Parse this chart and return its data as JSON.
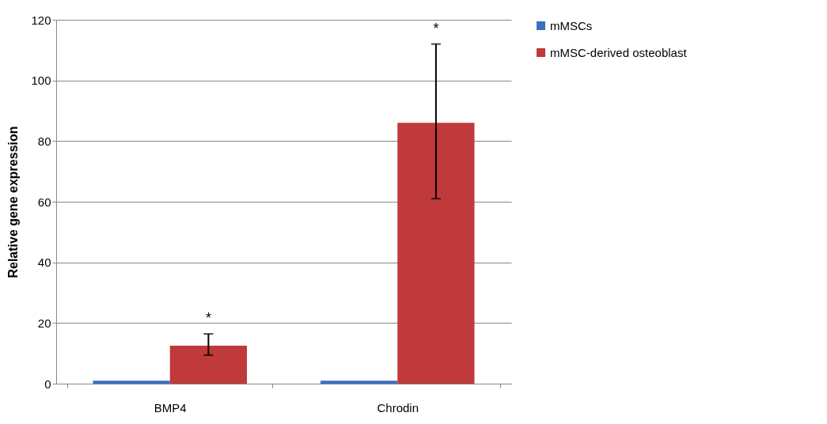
{
  "chart_data": {
    "type": "bar",
    "ylabel": "Relative gene expression",
    "categories": [
      "BMP4",
      "Chrodin"
    ],
    "series": [
      {
        "name": "mMSCs",
        "color": "#3a70c0",
        "values": [
          1,
          1
        ]
      },
      {
        "name": "mMSC-derived osteoblast",
        "color": "#c0393b",
        "values": [
          12.5,
          86
        ],
        "errors": [
          [
            9.4,
            16.4
          ],
          [
            61,
            112
          ]
        ]
      }
    ],
    "annotations": [
      "*",
      "*"
    ],
    "ylim": [
      0,
      120
    ],
    "yticks": [
      0,
      20,
      40,
      60,
      80,
      100,
      120
    ],
    "grid": "y",
    "legend": "right"
  }
}
